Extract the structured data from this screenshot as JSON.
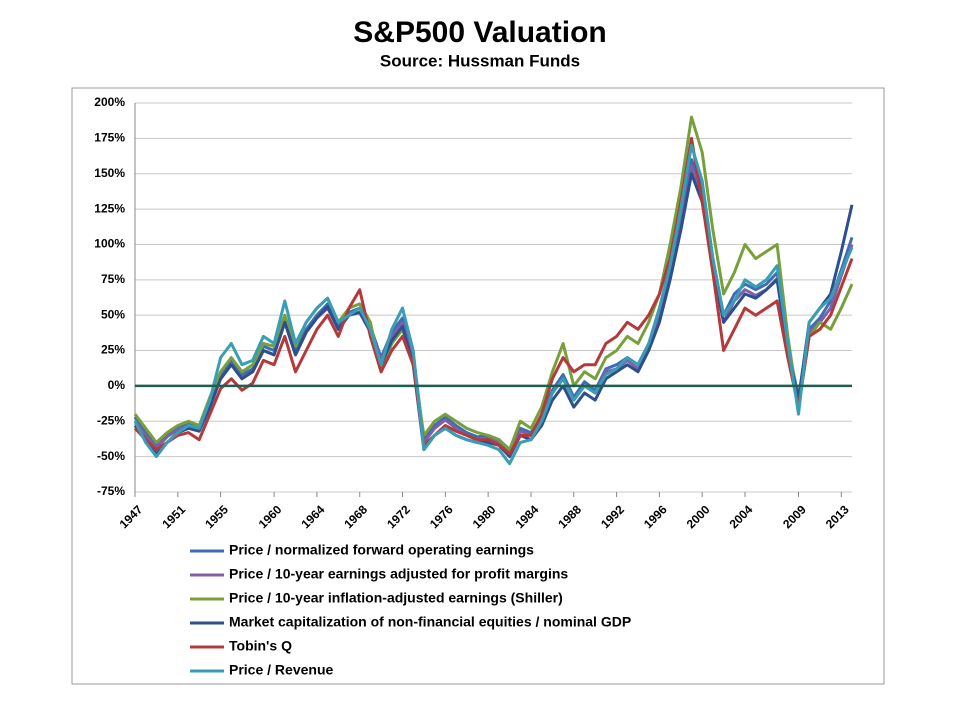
{
  "chart_data": {
    "type": "line",
    "title": "S&P500 Valuation",
    "subtitle": "Source: Hussman Funds",
    "x": [
      1947,
      1948,
      1949,
      1950,
      1951,
      1952,
      1953,
      1954,
      1955,
      1956,
      1957,
      1958,
      1959,
      1960,
      1961,
      1962,
      1963,
      1964,
      1965,
      1966,
      1967,
      1968,
      1969,
      1970,
      1971,
      1972,
      1973,
      1974,
      1975,
      1976,
      1977,
      1978,
      1979,
      1980,
      1981,
      1982,
      1983,
      1984,
      1985,
      1986,
      1987,
      1988,
      1989,
      1990,
      1991,
      1992,
      1993,
      1994,
      1995,
      1996,
      1997,
      1998,
      1999,
      2000,
      2001,
      2002,
      2003,
      2004,
      2005,
      2006,
      2007,
      2008,
      2009,
      2010,
      2011,
      2012,
      2013,
      2014
    ],
    "xlim": [
      1947,
      2014
    ],
    "xticks": [
      1947,
      1951,
      1955,
      1960,
      1964,
      1968,
      1972,
      1976,
      1980,
      1984,
      1988,
      1992,
      1996,
      2000,
      2004,
      2009,
      2013
    ],
    "ylim": [
      -75,
      200
    ],
    "yticks": [
      {
        "value": -75,
        "label": "-75%"
      },
      {
        "value": -50,
        "label": "-50%"
      },
      {
        "value": -25,
        "label": "-25%"
      },
      {
        "value": 0,
        "label": "0%"
      },
      {
        "value": 25,
        "label": "25%"
      },
      {
        "value": 50,
        "label": "50%"
      },
      {
        "value": 75,
        "label": "75%"
      },
      {
        "value": 100,
        "label": "100%"
      },
      {
        "value": 125,
        "label": "125%"
      },
      {
        "value": 150,
        "label": "150%"
      },
      {
        "value": 175,
        "label": "175%"
      },
      {
        "value": 200,
        "label": "200%"
      }
    ],
    "grid": true,
    "hline": {
      "value": 0,
      "color": "#1f5e50"
    },
    "series": [
      {
        "name": "Price / normalized forward operating earnings",
        "color": "#3d6db5",
        "values": [
          -22,
          -33,
          -42,
          -35,
          -30,
          -27,
          -30,
          -12,
          8,
          18,
          8,
          12,
          28,
          25,
          48,
          25,
          40,
          50,
          58,
          42,
          52,
          55,
          42,
          20,
          38,
          48,
          22,
          -38,
          -28,
          -22,
          -28,
          -33,
          -36,
          -35,
          -38,
          -45,
          -30,
          -33,
          -22,
          -3,
          8,
          -8,
          3,
          -3,
          12,
          15,
          20,
          15,
          30,
          50,
          80,
          115,
          160,
          140,
          90,
          50,
          65,
          72,
          68,
          72,
          80,
          28,
          -8,
          40,
          48,
          60,
          82,
          105
        ]
      },
      {
        "name": "Price / 10-year earnings adjusted for profit margins",
        "color": "#7e5fa8",
        "values": [
          -25,
          -35,
          -44,
          -36,
          -31,
          -28,
          -31,
          -14,
          5,
          15,
          6,
          10,
          25,
          22,
          45,
          22,
          38,
          48,
          55,
          40,
          50,
          52,
          40,
          18,
          35,
          45,
          20,
          -40,
          -30,
          -24,
          -30,
          -35,
          -38,
          -37,
          -40,
          -47,
          -32,
          -35,
          -24,
          -5,
          5,
          -10,
          0,
          -5,
          10,
          12,
          18,
          12,
          28,
          48,
          78,
          112,
          155,
          135,
          85,
          45,
          60,
          68,
          64,
          68,
          76,
          25,
          -10,
          38,
          45,
          55,
          78,
          100
        ]
      },
      {
        "name": "Price / 10-year inflation-adjusted earnings (Shiller)",
        "color": "#78a03a",
        "values": [
          -20,
          -30,
          -40,
          -33,
          -28,
          -25,
          -28,
          -8,
          10,
          20,
          10,
          15,
          30,
          28,
          50,
          28,
          45,
          55,
          62,
          45,
          55,
          58,
          45,
          10,
          30,
          40,
          15,
          -35,
          -25,
          -20,
          -25,
          -30,
          -33,
          -35,
          -38,
          -45,
          -25,
          -30,
          -15,
          10,
          30,
          0,
          10,
          5,
          20,
          25,
          35,
          30,
          45,
          65,
          100,
          140,
          190,
          165,
          110,
          65,
          80,
          100,
          90,
          95,
          100,
          35,
          -15,
          35,
          45,
          40,
          55,
          72
        ]
      },
      {
        "name": "Market capitalization of non-financial equities / nominal GDP",
        "color": "#2d4f8e",
        "values": [
          -28,
          -38,
          -48,
          -40,
          -33,
          -30,
          -32,
          -15,
          5,
          15,
          5,
          10,
          25,
          22,
          45,
          22,
          38,
          48,
          56,
          40,
          50,
          52,
          38,
          15,
          32,
          42,
          15,
          -45,
          -35,
          -30,
          -35,
          -38,
          -40,
          -40,
          -42,
          -50,
          -35,
          -38,
          -28,
          -10,
          0,
          -15,
          -5,
          -10,
          5,
          10,
          15,
          10,
          25,
          45,
          75,
          110,
          150,
          130,
          85,
          45,
          55,
          65,
          62,
          68,
          75,
          25,
          -10,
          45,
          55,
          65,
          95,
          128
        ]
      },
      {
        "name": "Tobin's Q",
        "color": "#b4393b",
        "values": [
          -30,
          -38,
          -45,
          -40,
          -35,
          -33,
          -38,
          -20,
          -2,
          5,
          -3,
          2,
          18,
          15,
          35,
          10,
          25,
          40,
          50,
          35,
          55,
          68,
          35,
          10,
          25,
          35,
          15,
          -42,
          -35,
          -28,
          -32,
          -35,
          -38,
          -38,
          -42,
          -48,
          -35,
          -35,
          -20,
          5,
          20,
          10,
          15,
          15,
          30,
          35,
          45,
          40,
          50,
          65,
          90,
          130,
          175,
          130,
          80,
          25,
          40,
          55,
          50,
          55,
          60,
          20,
          -15,
          35,
          40,
          50,
          70,
          90
        ]
      },
      {
        "name": "Price / Revenue",
        "color": "#3a9db6",
        "values": [
          -25,
          -40,
          -50,
          -40,
          -33,
          -28,
          -30,
          -10,
          20,
          30,
          15,
          18,
          35,
          30,
          60,
          30,
          45,
          55,
          62,
          45,
          50,
          55,
          40,
          15,
          40,
          55,
          25,
          -45,
          -35,
          -30,
          -35,
          -38,
          -40,
          -42,
          -45,
          -55,
          -40,
          -38,
          -25,
          -5,
          5,
          -10,
          0,
          -5,
          8,
          12,
          20,
          15,
          30,
          55,
          85,
          125,
          170,
          145,
          90,
          50,
          60,
          75,
          70,
          75,
          85,
          30,
          -20,
          45,
          55,
          62,
          80,
          98
        ]
      }
    ]
  }
}
